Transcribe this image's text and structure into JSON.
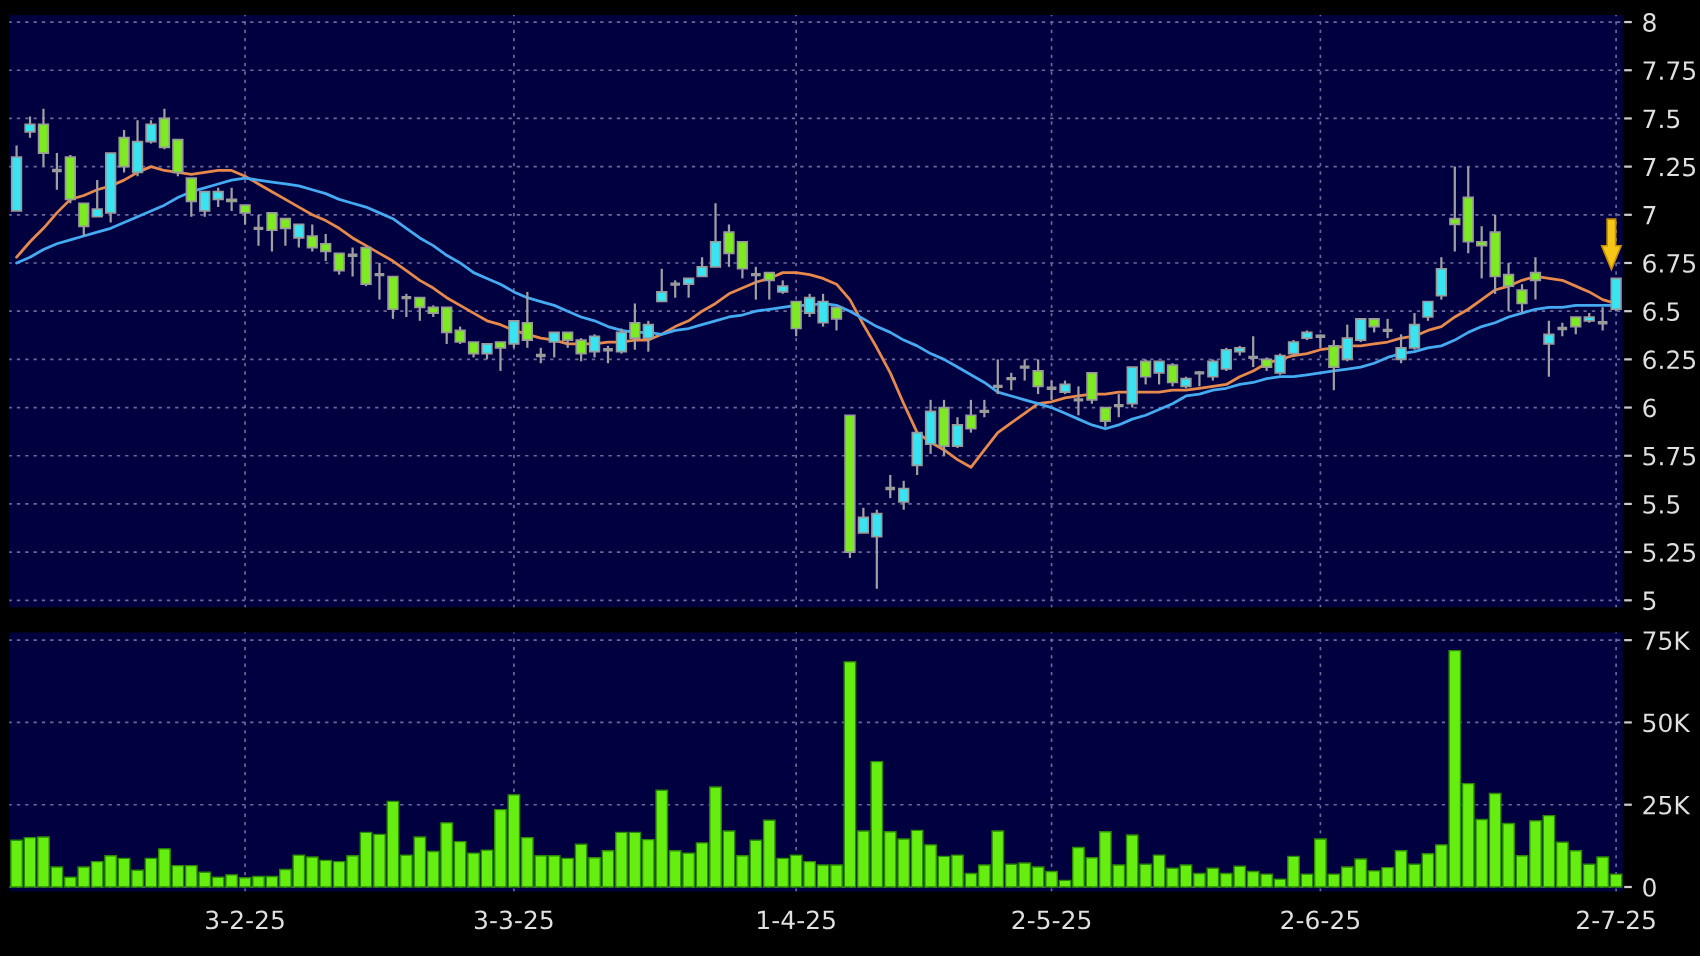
{
  "chart_data": [
    {
      "type": "candlestick",
      "categories": [
        null,
        null,
        null,
        null,
        null,
        null,
        null,
        null,
        null,
        null,
        null,
        null,
        null,
        null,
        null,
        null,
        null,
        null,
        null,
        null,
        null,
        null,
        null,
        null,
        null,
        null,
        null,
        null,
        null,
        null,
        null,
        null,
        null,
        null,
        null,
        null,
        null,
        null,
        null,
        null,
        null,
        null,
        null,
        null,
        null,
        null,
        null,
        null,
        null,
        null,
        null,
        null,
        null,
        null,
        null,
        null,
        null,
        null,
        null,
        null,
        null,
        null,
        null,
        null,
        null,
        null,
        null,
        null,
        null,
        null,
        null,
        null,
        null,
        null,
        null,
        null,
        null,
        null,
        null,
        null,
        null,
        null,
        null,
        null,
        null,
        null,
        null,
        null,
        null,
        null,
        null,
        null,
        null,
        null,
        null,
        null,
        null,
        null,
        null,
        null,
        null,
        null,
        null,
        null,
        null,
        null,
        null,
        null,
        null,
        null,
        null,
        null,
        null,
        null,
        null,
        null,
        null,
        null,
        null,
        null
      ],
      "ylim": [
        4.96,
        8.04
      ],
      "yticks": [
        5,
        5.25,
        5.5,
        5.75,
        6,
        6.25,
        6.5,
        6.75,
        7,
        7.25,
        7.5,
        7.75,
        8
      ],
      "grid": true,
      "tick_labels": "y",
      "line_style": "solid",
      "marker": "none",
      "series": [
        {
          "type": "candlestick",
          "colors": [
            "#38e4f2",
            "#38e4f2",
            "#7eea22",
            "#9a9a9a",
            "#7eea22",
            "#7eea22",
            "#38e4f2",
            "#38e4f2",
            "#7eea22",
            "#38e4f2",
            "#38e4f2",
            "#7eea22",
            "#7eea22",
            "#7eea22",
            "#38e4f2",
            "#38e4f2",
            "#7eea22",
            "#7eea22",
            "#9a9a9a",
            "#7eea22",
            "#7eea22",
            "#38e4f2",
            "#7eea22",
            "#7eea22",
            "#7eea22",
            "#9a9a9a",
            "#7eea22",
            "#9a9a9a",
            "#7eea22",
            "#9a9a9a",
            "#7eea22",
            "#7eea22",
            "#7eea22",
            "#7eea22",
            "#7eea22",
            "#38e4f2",
            "#7eea22",
            "#38e4f2",
            "#7eea22",
            "#9a9a9a",
            "#38e4f2",
            "#7eea22",
            "#7eea22",
            "#38e4f2",
            "#9a9a9a",
            "#38e4f2",
            "#7eea22",
            "#38e4f2",
            "#38e4f2",
            "#9a9a9a",
            "#38e4f2",
            "#38e4f2",
            "#38e4f2",
            "#7eea22",
            "#7eea22",
            "#9a9a9a",
            "#7eea22",
            "#38e4f2",
            "#7eea22",
            "#38e4f2",
            "#38e4f2",
            "#7eea22",
            "#7eea22",
            "#38e4f2",
            "#38e4f2",
            "#9a9a9a",
            "#38e4f2",
            "#38e4f2",
            "#38e4f2",
            "#7eea22",
            "#38e4f2",
            "#7eea22",
            "#9a9a9a",
            "#9a9a9a",
            "#9a9a9a",
            "#9a9a9a",
            "#7eea22",
            "#9a9a9a",
            "#38e4f2",
            "#9a9a9a",
            "#7eea22",
            "#7eea22",
            "#9a9a9a",
            "#38e4f2",
            "#7eea22",
            "#38e4f2",
            "#7eea22",
            "#38e4f2",
            "#9a9a9a",
            "#38e4f2",
            "#38e4f2",
            "#38e4f2",
            "#9a9a9a",
            "#7eea22",
            "#38e4f2",
            "#38e4f2",
            "#38e4f2",
            "#9a9a9a",
            "#7eea22",
            "#38e4f2",
            "#38e4f2",
            "#7eea22",
            "#9a9a9a",
            "#38e4f2",
            "#38e4f2",
            "#38e4f2",
            "#38e4f2",
            "#7eea22",
            "#7eea22",
            "#7eea22",
            "#7eea22",
            "#7eea22",
            "#7eea22",
            "#7eea22",
            "#38e4f2",
            "#9a9a9a",
            "#7eea22",
            "#38e4f2",
            "#9a9a9a",
            "#38e4f2"
          ],
          "ohlc": [
            [
              7.02,
              7.36,
              7.02,
              7.3
            ],
            [
              7.43,
              7.51,
              7.4,
              7.47
            ],
            [
              7.47,
              7.55,
              7.25,
              7.32
            ],
            [
              7.23,
              7.32,
              7.13,
              7.23
            ],
            [
              7.3,
              7.31,
              7.06,
              7.08
            ],
            [
              7.06,
              7.06,
              6.89,
              6.94
            ],
            [
              6.99,
              7.18,
              6.99,
              7.03
            ],
            [
              7.01,
              7.32,
              6.96,
              7.32
            ],
            [
              7.4,
              7.44,
              7.22,
              7.25
            ],
            [
              7.22,
              7.49,
              7.2,
              7.38
            ],
            [
              7.38,
              7.49,
              7.37,
              7.47
            ],
            [
              7.5,
              7.55,
              7.34,
              7.35
            ],
            [
              7.39,
              7.39,
              7.2,
              7.22
            ],
            [
              7.19,
              7.19,
              6.99,
              7.07
            ],
            [
              7.02,
              7.12,
              6.99,
              7.12
            ],
            [
              7.08,
              7.14,
              7.04,
              7.12
            ],
            [
              7.08,
              7.14,
              7.02,
              7.07
            ],
            [
              7.05,
              7.05,
              6.95,
              7.01
            ],
            [
              6.93,
              7.0,
              6.84,
              6.93
            ],
            [
              7.01,
              7.01,
              6.81,
              6.92
            ],
            [
              6.98,
              6.98,
              6.84,
              6.93
            ],
            [
              6.88,
              6.95,
              6.83,
              6.95
            ],
            [
              6.89,
              6.95,
              6.81,
              6.83
            ],
            [
              6.85,
              6.9,
              6.76,
              6.81
            ],
            [
              6.8,
              6.8,
              6.69,
              6.71
            ],
            [
              6.79,
              6.83,
              6.68,
              6.79
            ],
            [
              6.83,
              6.83,
              6.63,
              6.64
            ],
            [
              6.69,
              6.75,
              6.56,
              6.69
            ],
            [
              6.68,
              6.68,
              6.46,
              6.51
            ],
            [
              6.57,
              6.59,
              6.47,
              6.57
            ],
            [
              6.57,
              6.57,
              6.45,
              6.52
            ],
            [
              6.52,
              6.53,
              6.47,
              6.49
            ],
            [
              6.52,
              6.52,
              6.33,
              6.39
            ],
            [
              6.4,
              6.42,
              6.33,
              6.34
            ],
            [
              6.34,
              6.34,
              6.26,
              6.28
            ],
            [
              6.28,
              6.33,
              6.25,
              6.33
            ],
            [
              6.34,
              6.34,
              6.19,
              6.31
            ],
            [
              6.33,
              6.45,
              6.31,
              6.45
            ],
            [
              6.44,
              6.6,
              6.31,
              6.35
            ],
            [
              6.27,
              6.31,
              6.23,
              6.27
            ],
            [
              6.34,
              6.39,
              6.26,
              6.39
            ],
            [
              6.39,
              6.39,
              6.31,
              6.35
            ],
            [
              6.35,
              6.36,
              6.24,
              6.28
            ],
            [
              6.29,
              6.38,
              6.26,
              6.37
            ],
            [
              6.3,
              6.32,
              6.23,
              6.3
            ],
            [
              6.29,
              6.41,
              6.28,
              6.39
            ],
            [
              6.44,
              6.54,
              6.3,
              6.36
            ],
            [
              6.36,
              6.45,
              6.29,
              6.43
            ],
            [
              6.55,
              6.72,
              6.55,
              6.6
            ],
            [
              6.64,
              6.66,
              6.57,
              6.64
            ],
            [
              6.64,
              6.67,
              6.57,
              6.67
            ],
            [
              6.68,
              6.78,
              6.68,
              6.73
            ],
            [
              6.73,
              7.06,
              6.73,
              6.86
            ],
            [
              6.91,
              6.95,
              6.73,
              6.8
            ],
            [
              6.86,
              6.86,
              6.67,
              6.72
            ],
            [
              6.69,
              6.73,
              6.56,
              6.69
            ],
            [
              6.7,
              6.7,
              6.56,
              6.66
            ],
            [
              6.6,
              6.66,
              6.59,
              6.63
            ],
            [
              6.55,
              6.55,
              6.37,
              6.41
            ],
            [
              6.49,
              6.59,
              6.47,
              6.57
            ],
            [
              6.44,
              6.59,
              6.42,
              6.55
            ],
            [
              6.52,
              6.52,
              6.4,
              6.46
            ],
            [
              5.96,
              5.96,
              5.22,
              5.25
            ],
            [
              5.35,
              5.48,
              5.35,
              5.43
            ],
            [
              5.33,
              5.47,
              5.06,
              5.45
            ],
            [
              5.58,
              5.65,
              5.53,
              5.58
            ],
            [
              5.51,
              5.62,
              5.47,
              5.58
            ],
            [
              5.7,
              5.87,
              5.65,
              5.87
            ],
            [
              5.81,
              6.04,
              5.76,
              5.98
            ],
            [
              6.0,
              6.04,
              5.75,
              5.8
            ],
            [
              5.8,
              5.95,
              5.79,
              5.91
            ],
            [
              5.96,
              6.04,
              5.87,
              5.89
            ],
            [
              5.98,
              6.04,
              5.95,
              5.98
            ],
            [
              6.11,
              6.25,
              6.07,
              6.11
            ],
            [
              6.15,
              6.18,
              6.09,
              6.15
            ],
            [
              6.21,
              6.25,
              6.14,
              6.21
            ],
            [
              6.19,
              6.25,
              6.07,
              6.11
            ],
            [
              6.1,
              6.14,
              6.04,
              6.1
            ],
            [
              6.08,
              6.14,
              6.07,
              6.12
            ],
            [
              6.04,
              6.11,
              5.96,
              6.04
            ],
            [
              6.18,
              6.18,
              6.02,
              6.04
            ],
            [
              6.0,
              6.0,
              5.9,
              5.93
            ],
            [
              6.01,
              6.07,
              5.95,
              6.01
            ],
            [
              6.02,
              6.21,
              6.0,
              6.21
            ],
            [
              6.24,
              6.25,
              6.12,
              6.16
            ],
            [
              6.18,
              6.24,
              6.12,
              6.24
            ],
            [
              6.22,
              6.23,
              6.11,
              6.13
            ],
            [
              6.11,
              6.16,
              6.1,
              6.15
            ],
            [
              6.18,
              6.19,
              6.11,
              6.18
            ],
            [
              6.16,
              6.25,
              6.14,
              6.24
            ],
            [
              6.2,
              6.31,
              6.19,
              6.3
            ],
            [
              6.29,
              6.32,
              6.27,
              6.31
            ],
            [
              6.26,
              6.37,
              6.21,
              6.26
            ],
            [
              6.25,
              6.26,
              6.19,
              6.21
            ],
            [
              6.18,
              6.28,
              6.17,
              6.27
            ],
            [
              6.28,
              6.35,
              6.27,
              6.34
            ],
            [
              6.36,
              6.4,
              6.35,
              6.39
            ],
            [
              6.37,
              6.38,
              6.31,
              6.37
            ],
            [
              6.32,
              6.35,
              6.09,
              6.21
            ],
            [
              6.25,
              6.43,
              6.24,
              6.36
            ],
            [
              6.35,
              6.46,
              6.34,
              6.46
            ],
            [
              6.46,
              6.46,
              6.39,
              6.42
            ],
            [
              6.4,
              6.46,
              6.36,
              6.4
            ],
            [
              6.25,
              6.38,
              6.23,
              6.31
            ],
            [
              6.31,
              6.49,
              6.3,
              6.43
            ],
            [
              6.47,
              6.55,
              6.45,
              6.55
            ],
            [
              6.58,
              6.78,
              6.56,
              6.72
            ],
            [
              6.98,
              7.25,
              6.81,
              6.95
            ],
            [
              7.09,
              7.25,
              6.8,
              6.86
            ],
            [
              6.86,
              6.94,
              6.67,
              6.84
            ],
            [
              6.91,
              7.0,
              6.59,
              6.68
            ],
            [
              6.69,
              6.75,
              6.5,
              6.63
            ],
            [
              6.61,
              6.64,
              6.49,
              6.54
            ],
            [
              6.7,
              6.78,
              6.56,
              6.66
            ],
            [
              6.33,
              6.45,
              6.16,
              6.38
            ],
            [
              6.41,
              6.44,
              6.37,
              6.41
            ],
            [
              6.47,
              6.47,
              6.38,
              6.42
            ],
            [
              6.45,
              6.49,
              6.44,
              6.47
            ],
            [
              6.44,
              6.52,
              6.4,
              6.44
            ],
            [
              6.51,
              6.67,
              6.5,
              6.67
            ]
          ]
        },
        {
          "type": "line",
          "color": "#e8894c",
          "values": [
            6.78,
            6.86,
            6.93,
            7.01,
            7.08,
            7.1,
            7.13,
            7.15,
            7.18,
            7.22,
            7.25,
            7.23,
            7.22,
            7.21,
            7.22,
            7.23,
            7.23,
            7.2,
            7.16,
            7.12,
            7.08,
            7.04,
            7.0,
            6.97,
            6.93,
            6.88,
            6.84,
            6.8,
            6.76,
            6.71,
            6.66,
            6.62,
            6.57,
            6.53,
            6.49,
            6.45,
            6.43,
            6.4,
            6.38,
            6.36,
            6.35,
            6.33,
            6.33,
            6.33,
            6.34,
            6.34,
            6.35,
            6.35,
            6.38,
            6.42,
            6.45,
            6.5,
            6.54,
            6.59,
            6.62,
            6.65,
            6.67,
            6.7,
            6.7,
            6.69,
            6.67,
            6.64,
            6.56,
            6.43,
            6.31,
            6.18,
            6.02,
            5.87,
            5.82,
            5.78,
            5.73,
            5.69,
            5.78,
            5.87,
            5.92,
            5.97,
            6.02,
            6.03,
            6.05,
            6.06,
            6.07,
            6.07,
            6.08,
            6.08,
            6.08,
            6.08,
            6.09,
            6.09,
            6.1,
            6.11,
            6.12,
            6.16,
            6.19,
            6.23,
            6.25,
            6.27,
            6.28,
            6.3,
            6.31,
            6.32,
            6.32,
            6.33,
            6.34,
            6.36,
            6.37,
            6.4,
            6.42,
            6.47,
            6.51,
            6.56,
            6.61,
            6.63,
            6.66,
            6.68,
            6.67,
            6.66,
            6.63,
            6.6,
            6.56,
            6.54
          ]
        },
        {
          "type": "line",
          "color": "#44aaf2",
          "values": [
            6.75,
            6.78,
            6.82,
            6.85,
            6.87,
            6.89,
            6.91,
            6.93,
            6.96,
            6.99,
            7.02,
            7.05,
            7.09,
            7.12,
            7.14,
            7.16,
            7.18,
            7.19,
            7.18,
            7.17,
            7.16,
            7.15,
            7.13,
            7.11,
            7.08,
            7.06,
            7.04,
            7.01,
            6.98,
            6.93,
            6.88,
            6.84,
            6.79,
            6.75,
            6.7,
            6.67,
            6.64,
            6.6,
            6.57,
            6.55,
            6.53,
            6.5,
            6.47,
            6.45,
            6.42,
            6.4,
            6.39,
            6.39,
            6.38,
            6.4,
            6.41,
            6.43,
            6.45,
            6.47,
            6.48,
            6.5,
            6.51,
            6.52,
            6.53,
            6.53,
            6.54,
            6.53,
            6.5,
            6.46,
            6.42,
            6.39,
            6.35,
            6.32,
            6.28,
            6.25,
            6.21,
            6.17,
            6.13,
            6.08,
            6.06,
            6.04,
            6.02,
            6.0,
            5.97,
            5.94,
            5.91,
            5.89,
            5.91,
            5.94,
            5.96,
            5.99,
            6.02,
            6.06,
            6.07,
            6.09,
            6.1,
            6.12,
            6.13,
            6.15,
            6.16,
            6.16,
            6.17,
            6.18,
            6.19,
            6.2,
            6.21,
            6.23,
            6.26,
            6.28,
            6.29,
            6.31,
            6.32,
            6.35,
            6.39,
            6.42,
            6.44,
            6.47,
            6.49,
            6.51,
            6.52,
            6.52,
            6.53,
            6.53,
            6.53,
            6.53
          ]
        }
      ]
    },
    {
      "type": "bar",
      "categories": [
        null,
        null,
        null,
        null,
        null,
        null,
        null,
        null,
        null,
        null,
        null,
        null,
        null,
        null,
        null,
        null,
        null,
        "3-2-25",
        null,
        null,
        null,
        null,
        null,
        null,
        null,
        null,
        null,
        null,
        null,
        null,
        null,
        null,
        null,
        null,
        null,
        null,
        null,
        "3-3-25",
        null,
        null,
        null,
        null,
        null,
        null,
        null,
        null,
        null,
        null,
        null,
        null,
        null,
        null,
        null,
        null,
        null,
        null,
        null,
        null,
        "1-4-25",
        null,
        null,
        null,
        null,
        null,
        null,
        null,
        null,
        null,
        null,
        null,
        null,
        null,
        null,
        null,
        null,
        null,
        null,
        "2-5-25",
        null,
        null,
        null,
        null,
        null,
        null,
        null,
        null,
        null,
        null,
        null,
        null,
        null,
        null,
        null,
        null,
        null,
        null,
        null,
        "2-6-25",
        null,
        null,
        null,
        null,
        null,
        null,
        null,
        null,
        null,
        null,
        null,
        null,
        null,
        null,
        null,
        null,
        null,
        null,
        null,
        null,
        null,
        "2-7-25"
      ],
      "ylim": [
        -1500,
        77500
      ],
      "yticks": [
        0,
        {
          "value": 25000,
          "label": "25K"
        },
        {
          "value": 50000,
          "label": "50K"
        },
        {
          "value": 75000,
          "label": "75K"
        }
      ],
      "grid": true,
      "color": "#66ee11",
      "values": [
        14200,
        15000,
        15200,
        6100,
        3000,
        6100,
        7700,
        9500,
        8700,
        5100,
        8700,
        11600,
        6500,
        6500,
        4500,
        3000,
        3700,
        2800,
        3200,
        3200,
        5300,
        9700,
        9100,
        8100,
        7700,
        9500,
        16600,
        16000,
        26000,
        9700,
        15200,
        10800,
        19500,
        13800,
        10300,
        11200,
        23500,
        28000,
        15000,
        9500,
        9500,
        8700,
        13000,
        8900,
        11000,
        16600,
        16600,
        14400,
        29400,
        11000,
        10300,
        13400,
        30400,
        17000,
        9500,
        14200,
        20300,
        8700,
        9700,
        7700,
        6700,
        6700,
        68400,
        17000,
        38100,
        16800,
        14600,
        17200,
        12800,
        9300,
        9700,
        4100,
        6700,
        17000,
        6900,
        7300,
        6100,
        4700,
        2000,
        12000,
        8900,
        16800,
        6700,
        15800,
        6900,
        9700,
        5700,
        6700,
        4100,
        5700,
        4100,
        6300,
        4700,
        3900,
        2400,
        9300,
        3900,
        14600,
        3900,
        6100,
        8500,
        4900,
        5900,
        11000,
        6900,
        10100,
        12800,
        71800,
        31400,
        20500,
        28400,
        19300,
        9500,
        20100,
        21700,
        13600,
        11000,
        6900,
        9100,
        3900
      ]
    }
  ]
}
